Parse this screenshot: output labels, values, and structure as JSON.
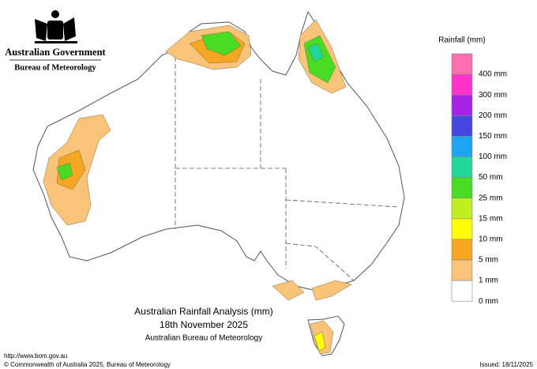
{
  "header": {
    "government": "Australian Government",
    "bureau": "Bureau of Meteorology"
  },
  "legend": {
    "title": "Rainfall (mm)",
    "items": [
      {
        "label": "400 mm",
        "color": "#ff6fae"
      },
      {
        "label": "300 mm",
        "color": "#ff33cc"
      },
      {
        "label": "200 mm",
        "color": "#a524e6"
      },
      {
        "label": "150 mm",
        "color": "#4646e0"
      },
      {
        "label": "100 mm",
        "color": "#1ea4f0"
      },
      {
        "label": "50 mm",
        "color": "#22d898"
      },
      {
        "label": "25 mm",
        "color": "#48dc22"
      },
      {
        "label": "15 mm",
        "color": "#c0ee22"
      },
      {
        "label": "10 mm",
        "color": "#ffff00"
      },
      {
        "label": "5 mm",
        "color": "#f5a623"
      },
      {
        "label": "1 mm",
        "color": "#f9c47a"
      },
      {
        "label": "0 mm",
        "color": "#ffffff"
      }
    ]
  },
  "caption": {
    "title": "Australian Rainfall Analysis (mm)",
    "date": "18th November 2025",
    "source": "Australian Bureau of Meteorology"
  },
  "footer": {
    "url": "http://www.bom.gov.au",
    "copyright": "© Commonwealth of Australia 2025, Bureau of Meteorology",
    "issued": "Issued: 18/11/2025"
  }
}
